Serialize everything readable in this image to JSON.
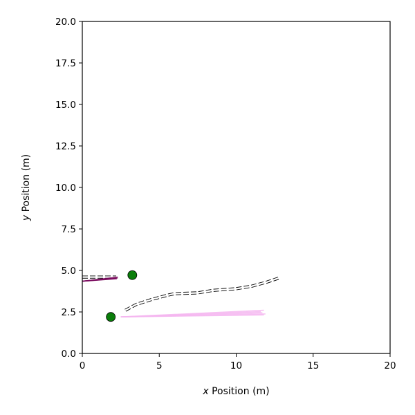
{
  "chart_data": {
    "type": "line",
    "title": "",
    "xlabel_var": "x",
    "xlabel_text": " Position (m)",
    "ylabel_var": "y",
    "ylabel_text": " Position (m)",
    "xlim": [
      0,
      20
    ],
    "ylim": [
      0,
      20
    ],
    "xticks": [
      0,
      5,
      10,
      15,
      20
    ],
    "yticks": [
      0,
      2.5,
      5,
      7.5,
      10,
      12.5,
      15,
      17.5,
      20
    ],
    "xtick_labels": [
      "0",
      "5",
      "10",
      "15",
      "20"
    ],
    "ytick_labels": [
      "0.0",
      "2.5",
      "5.0",
      "7.5",
      "10.0",
      "12.5",
      "15.0",
      "17.5",
      "20.0"
    ],
    "grid": false,
    "series": [
      {
        "kind": "dashed-lane",
        "color": "#000000",
        "points": [
          [
            2.8,
            2.6
          ],
          [
            3.5,
            2.95
          ],
          [
            4.5,
            3.25
          ],
          [
            5.5,
            3.5
          ],
          [
            6.0,
            3.6
          ],
          [
            7.5,
            3.65
          ],
          [
            8.5,
            3.8
          ],
          [
            10.0,
            3.9
          ],
          [
            11.0,
            4.05
          ],
          [
            12.0,
            4.3
          ],
          [
            12.8,
            4.55
          ]
        ]
      },
      {
        "kind": "dashed-lane",
        "color": "#000000",
        "points": [
          [
            0.0,
            4.6
          ],
          [
            1.0,
            4.6
          ],
          [
            2.2,
            4.6
          ]
        ]
      },
      {
        "kind": "trajectory-fan",
        "color": "#f4b6f0",
        "start": [
          2.5,
          2.2
        ],
        "ends": [
          [
            11.8,
            2.32
          ],
          [
            11.9,
            2.38
          ],
          [
            11.7,
            2.45
          ],
          [
            11.6,
            2.52
          ],
          [
            11.8,
            2.6
          ]
        ]
      },
      {
        "kind": "trajectory-fan",
        "color": "#7a0a5e",
        "start": [
          0.0,
          4.35
        ],
        "ends": [
          [
            2.3,
            4.55
          ],
          [
            2.25,
            4.5
          ],
          [
            2.3,
            4.6
          ],
          [
            2.2,
            4.52
          ]
        ]
      }
    ],
    "markers": [
      {
        "x": 3.25,
        "y": 4.72,
        "color": "#0a7d0a"
      },
      {
        "x": 1.85,
        "y": 2.2,
        "color": "#0a7d0a"
      }
    ]
  }
}
